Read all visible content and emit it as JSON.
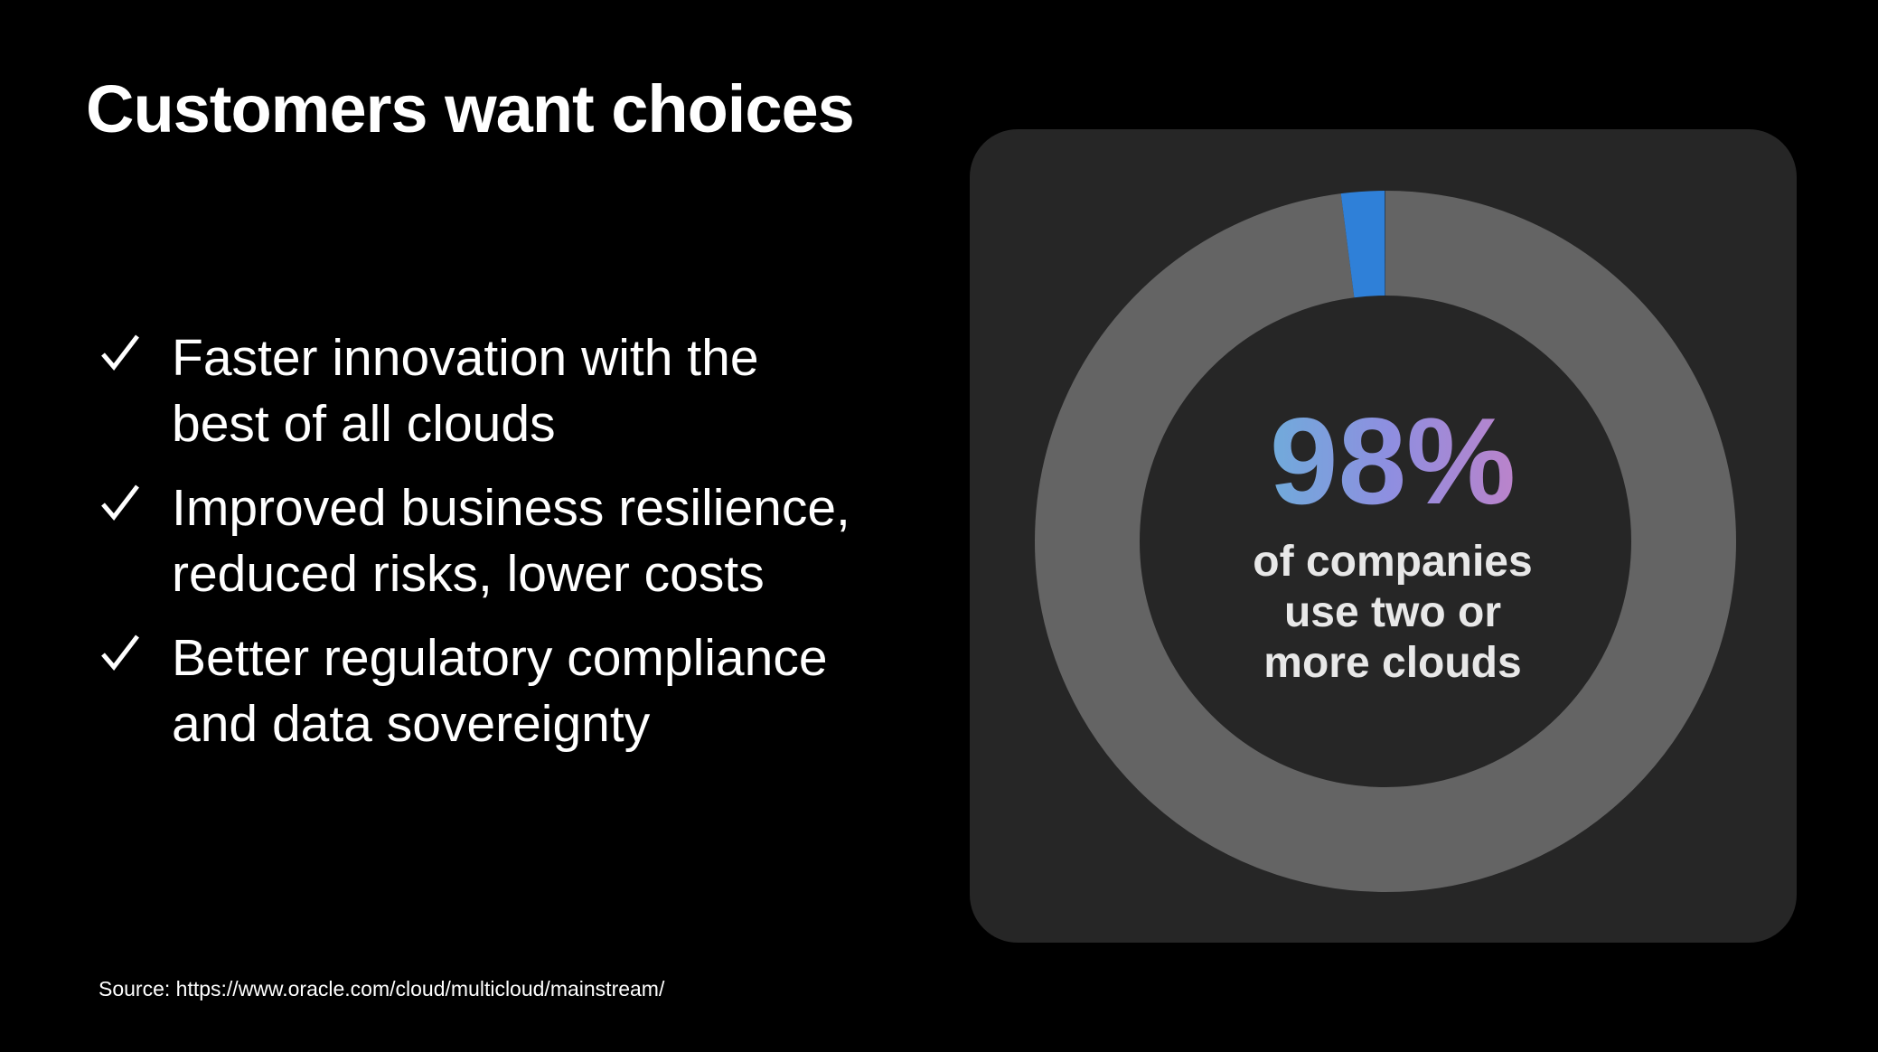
{
  "title": "Customers want choices",
  "bullets": [
    {
      "lines": [
        "Faster innovation with the",
        "best of all clouds"
      ]
    },
    {
      "lines": [
        "Improved business resilience,",
        "reduced risks, lower costs"
      ]
    },
    {
      "lines": [
        "Better regulatory compliance",
        "and data sovereignty"
      ]
    }
  ],
  "stat": {
    "value": 98,
    "label": "98%",
    "caption_lines": [
      "of companies",
      "use two or",
      "more clouds"
    ]
  },
  "source": "Source: https://www.oracle.com/cloud/multicloud/mainstream/"
}
